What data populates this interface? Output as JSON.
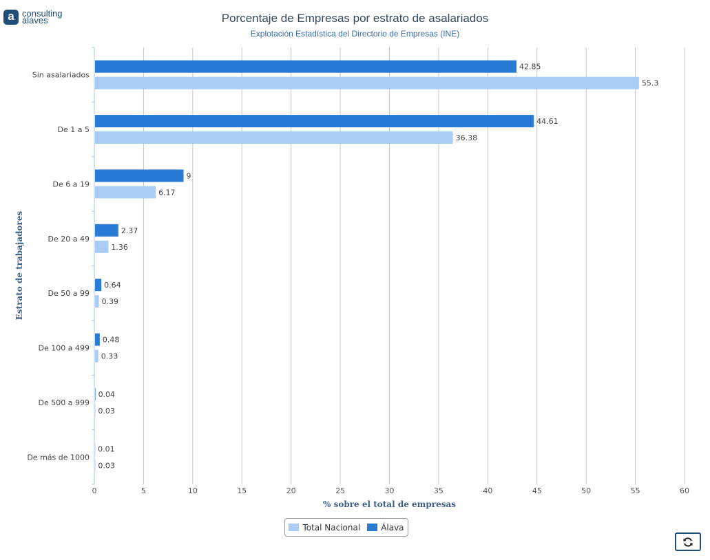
{
  "logo": {
    "line1": "consulting",
    "line2": "alaves",
    "mark": "a"
  },
  "chart_data": {
    "type": "bar",
    "orientation": "horizontal",
    "title": "Porcentaje de Empresas por estrato de asalariados",
    "subtitle": "Explotación Estadística del Directorio de Empresas (INE)",
    "xlabel": "% sobre el total de empresas",
    "ylabel": "Estrato de trabajadores",
    "xlim": [
      0,
      60
    ],
    "xticks": [
      0,
      5,
      10,
      15,
      20,
      25,
      30,
      35,
      40,
      45,
      50,
      55,
      60
    ],
    "grid": true,
    "categories": [
      "Sin asalariados",
      "De 1 a 5",
      "De 6 a 19",
      "De 20 a 49",
      "De 50 a 99",
      "De 100 a 499",
      "De 500 a 999",
      "De más de 1000"
    ],
    "series": [
      {
        "name": "Álava",
        "color": "#2a7bd6",
        "values": [
          42.85,
          44.61,
          9,
          2.37,
          0.64,
          0.48,
          0.04,
          0.01
        ]
      },
      {
        "name": "Total Nacional",
        "color": "#a9cdf4",
        "values": [
          55.3,
          36.38,
          6.17,
          1.36,
          0.39,
          0.33,
          0.03,
          0.03
        ]
      }
    ],
    "legend_order": [
      "Total Nacional",
      "Álava"
    ],
    "legend_position": "bottom-center"
  },
  "controls": {
    "refresh_icon": "refresh-icon"
  }
}
